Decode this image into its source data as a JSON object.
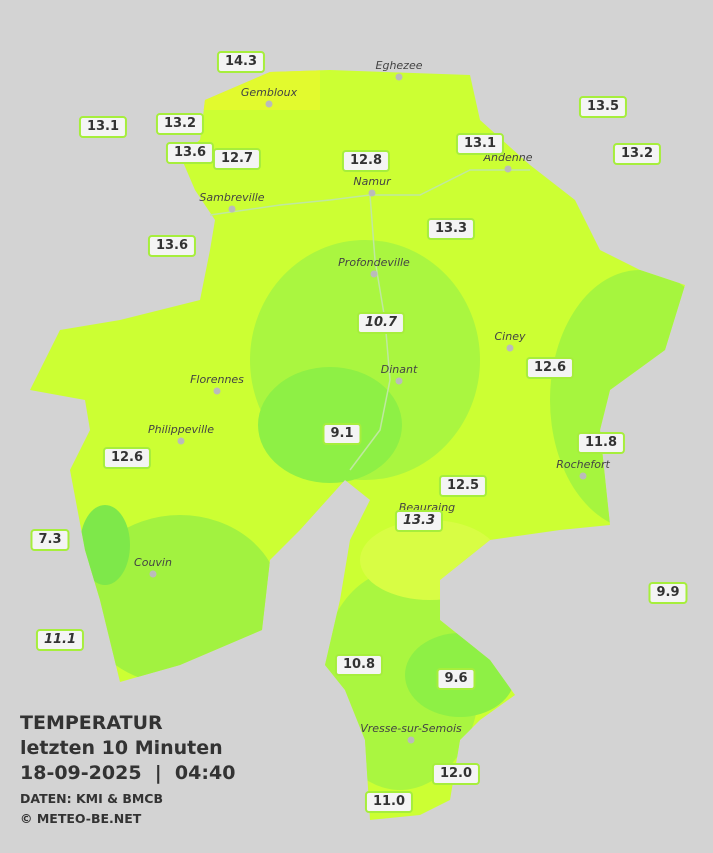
{
  "title": {
    "line1": "TEMPERATUR",
    "line2": "letzten 10 Minuten",
    "line3": "18-09-2025  |  04:40",
    "source": "DATEN: KMI & BMCB",
    "copyright": "© METEO-BE.NET"
  },
  "cities": [
    "Eghezee",
    "Gembloux",
    "Andenne",
    "Namur",
    "Sambreville",
    "Profondeville",
    "Ciney",
    "Dinant",
    "Florennes",
    "Philippeville",
    "Rochefort",
    "Beauraing",
    "Couvin",
    "Vresse-sur-Semois"
  ],
  "stations": [
    {
      "value": "14.3"
    },
    {
      "value": "13.1"
    },
    {
      "value": "13.2"
    },
    {
      "value": "13.6"
    },
    {
      "value": "12.7"
    },
    {
      "value": "12.8"
    },
    {
      "value": "13.1"
    },
    {
      "value": "13.5"
    },
    {
      "value": "13.2"
    },
    {
      "value": "13.6"
    },
    {
      "value": "13.3"
    },
    {
      "value": "10.7",
      "italic": true
    },
    {
      "value": "12.6"
    },
    {
      "value": "9.1"
    },
    {
      "value": "11.8"
    },
    {
      "value": "12.6"
    },
    {
      "value": "12.5"
    },
    {
      "value": "13.3",
      "italic": true
    },
    {
      "value": "7.3"
    },
    {
      "value": "9.9"
    },
    {
      "value": "11.1",
      "italic": true
    },
    {
      "value": "10.8"
    },
    {
      "value": "9.6"
    },
    {
      "value": "12.0"
    },
    {
      "value": "11.0"
    }
  ]
}
